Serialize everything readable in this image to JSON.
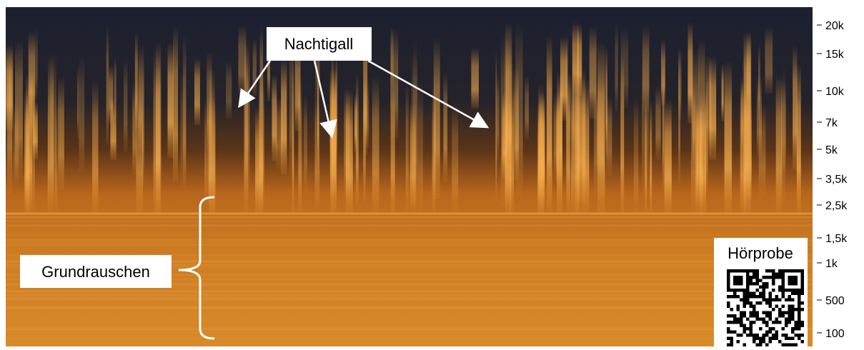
{
  "annotations": {
    "bird": "Nachtigall",
    "noise": "Grundrauschen",
    "sample": "Hörprobe"
  },
  "frequency_axis": {
    "labels": [
      "20k",
      "15k",
      "10k",
      "7k",
      "5k",
      "3,5k",
      "2,5k",
      "1,5k",
      "1k",
      "500",
      "100"
    ]
  }
}
